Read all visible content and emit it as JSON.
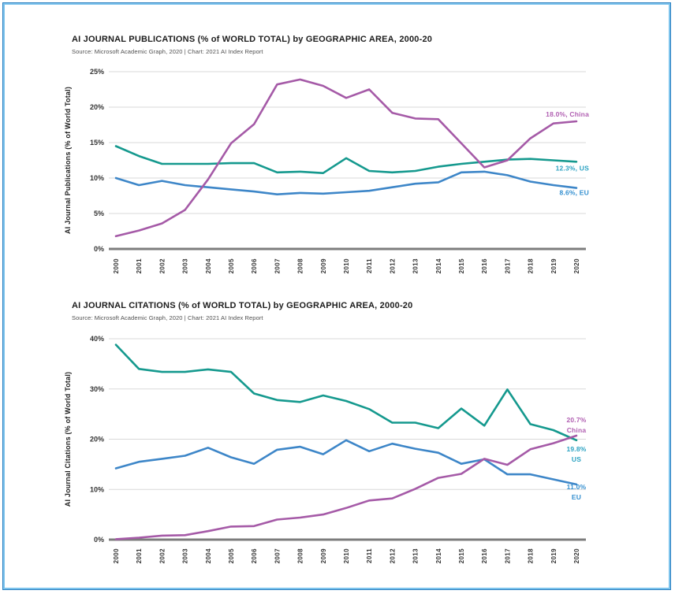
{
  "page": {
    "background": "#ffffff",
    "frame_outer_color": "#2b7fc0",
    "frame_inner_color": "#7cc3ec"
  },
  "chart_data": [
    {
      "type": "line",
      "title": "AI JOURNAL PUBLICATIONS (% of WORLD TOTAL) by GEOGRAPHIC AREA, 2000-20",
      "source": "Source: Microsoft Academic Graph, 2020 | Chart: 2021 AI Index Report",
      "ylabel": "AI Journal Publications (% of World Total)",
      "xlabel": "",
      "ylim": [
        0,
        25
      ],
      "ytick_values": [
        0,
        5,
        10,
        15,
        20,
        25
      ],
      "ytick_labels": [
        "0%",
        "5%",
        "10%",
        "15%",
        "20%",
        "25%"
      ],
      "x": [
        "2000",
        "2001",
        "2002",
        "2003",
        "2004",
        "2005",
        "2006",
        "2007",
        "2008",
        "2009",
        "2010",
        "2011",
        "2012",
        "2013",
        "2014",
        "2015",
        "2016",
        "2017",
        "2018",
        "2019",
        "2020"
      ],
      "grid": "horizontal",
      "grid_color": "#d9d9d9",
      "axis_color": "#7c7c7c",
      "tick_text_color": "#333333",
      "legend_position": "end-of-line labels at right",
      "series": [
        {
          "name": "US",
          "color": "#15998e",
          "label_color": "#2ba2c2",
          "end_label_lines": [
            "12.3%, US"
          ],
          "values": [
            14.5,
            13.1,
            12.0,
            12.0,
            12.0,
            12.1,
            12.1,
            10.8,
            10.9,
            10.7,
            12.8,
            11.0,
            10.8,
            11.0,
            11.6,
            12.0,
            12.3,
            12.6,
            12.7,
            12.5,
            12.3
          ]
        },
        {
          "name": "EU",
          "color": "#3d86c8",
          "label_color": "#338fd0",
          "end_label_lines": [
            "8.6%, EU"
          ],
          "values": [
            10.0,
            9.0,
            9.6,
            9.0,
            8.7,
            8.4,
            8.1,
            7.7,
            7.9,
            7.8,
            8.0,
            8.2,
            8.7,
            9.2,
            9.4,
            10.8,
            10.9,
            10.4,
            9.5,
            9.0,
            8.6
          ]
        },
        {
          "name": "China",
          "color": "#a55aa7",
          "label_color": "#b160b2",
          "end_label_lines": [
            "18.0%, China"
          ],
          "values": [
            1.8,
            2.6,
            3.6,
            5.5,
            9.8,
            14.9,
            17.6,
            23.2,
            23.9,
            23.0,
            21.3,
            22.5,
            19.2,
            18.4,
            18.3,
            14.9,
            11.5,
            12.5,
            15.6,
            17.7,
            18.0
          ]
        }
      ]
    },
    {
      "type": "line",
      "title": "AI JOURNAL CITATIONS (% of WORLD TOTAL) by GEOGRAPHIC AREA, 2000-20",
      "source": "Source: Microsoft Academic Graph, 2020 | Chart: 2021 AI Index Report",
      "ylabel": "AI Journal Citations (% of World Total)",
      "xlabel": "",
      "ylim": [
        0,
        40
      ],
      "ytick_values": [
        0,
        10,
        20,
        30,
        40
      ],
      "ytick_labels": [
        "0%",
        "10%",
        "20%",
        "30%",
        "40%"
      ],
      "x": [
        "2000",
        "2001",
        "2002",
        "2003",
        "2004",
        "2005",
        "2006",
        "2007",
        "2008",
        "2009",
        "2010",
        "2011",
        "2012",
        "2013",
        "2014",
        "2015",
        "2016",
        "2017",
        "2018",
        "2019",
        "2020"
      ],
      "grid": "horizontal",
      "grid_color": "#d9d9d9",
      "axis_color": "#7c7c7c",
      "tick_text_color": "#333333",
      "legend_position": "end-of-line labels at right",
      "series": [
        {
          "name": "US",
          "color": "#15998e",
          "label_color": "#2ba2c2",
          "end_label_lines": [
            "19.8%",
            "US"
          ],
          "values": [
            38.8,
            34.0,
            33.4,
            33.4,
            33.9,
            33.4,
            29.1,
            27.8,
            27.4,
            28.7,
            27.6,
            26.0,
            23.3,
            23.3,
            22.2,
            26.1,
            22.7,
            29.9,
            23.0,
            21.8,
            19.8
          ]
        },
        {
          "name": "EU",
          "color": "#3d86c8",
          "label_color": "#338fd0",
          "end_label_lines": [
            "11.0%",
            "EU"
          ],
          "values": [
            14.2,
            15.5,
            16.1,
            16.7,
            18.3,
            16.4,
            15.1,
            17.9,
            18.5,
            17.0,
            19.8,
            17.6,
            19.1,
            18.1,
            17.3,
            15.1,
            16.0,
            13.0,
            13.0,
            12.0,
            11.0
          ]
        },
        {
          "name": "China",
          "color": "#a55aa7",
          "label_color": "#b160b2",
          "end_label_lines": [
            "20.7%",
            "China"
          ],
          "values": [
            0.1,
            0.4,
            0.8,
            0.9,
            1.7,
            2.6,
            2.7,
            4.0,
            4.4,
            5.0,
            6.3,
            7.8,
            8.2,
            10.1,
            12.3,
            13.1,
            16.1,
            14.9,
            18.0,
            19.2,
            20.7
          ]
        }
      ]
    }
  ]
}
